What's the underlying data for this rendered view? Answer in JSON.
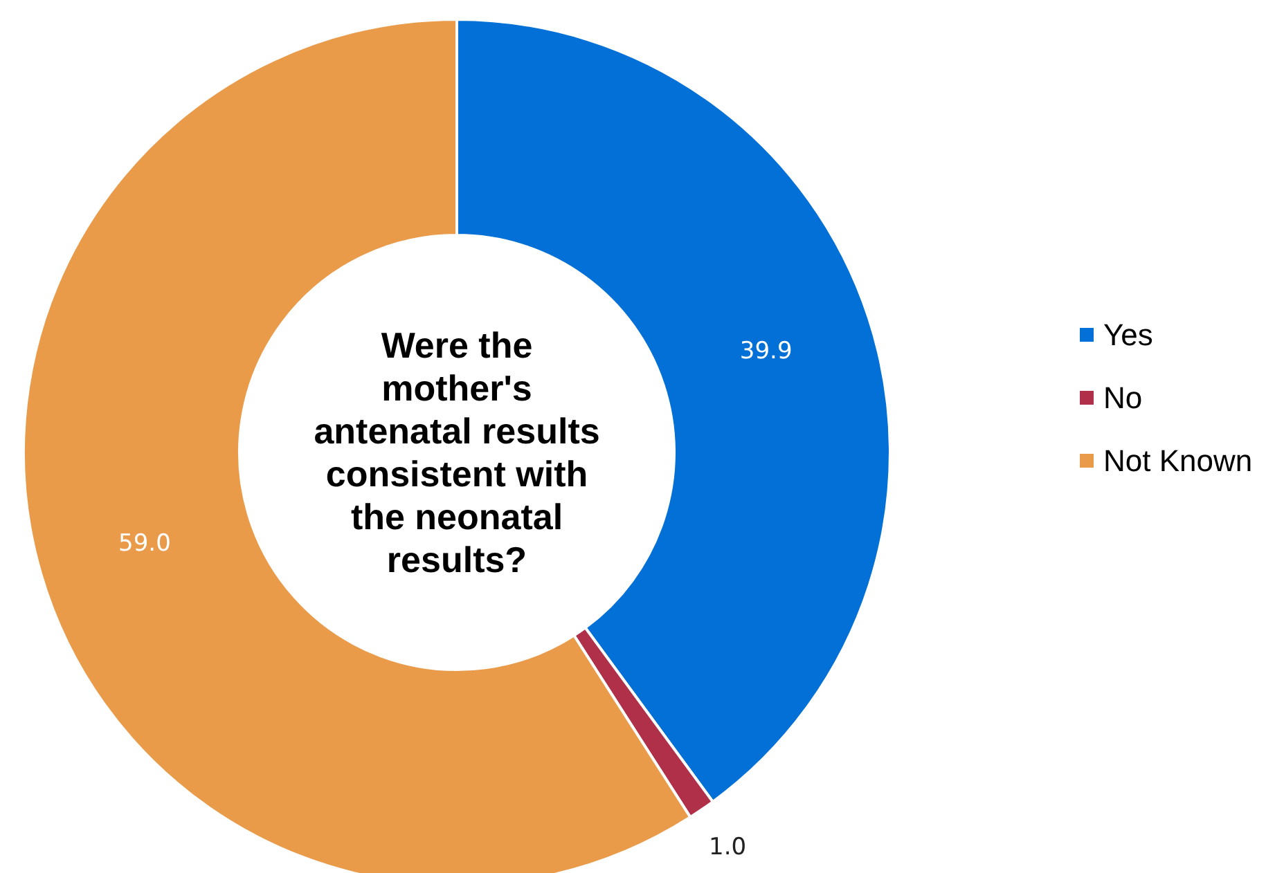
{
  "chart_data": {
    "type": "donut",
    "title": "Were the\nmother's\nantenatal results\nconsistent with\nthe neonatal\nresults?",
    "categories": [
      "Yes",
      "No",
      "Not Known"
    ],
    "values": [
      39.9,
      1.0,
      59.0
    ],
    "value_labels": [
      "39.9",
      "1.0",
      "59.0"
    ],
    "colors": [
      "#0270d6",
      "#b0304a",
      "#e99b4a"
    ],
    "legend": "right"
  }
}
